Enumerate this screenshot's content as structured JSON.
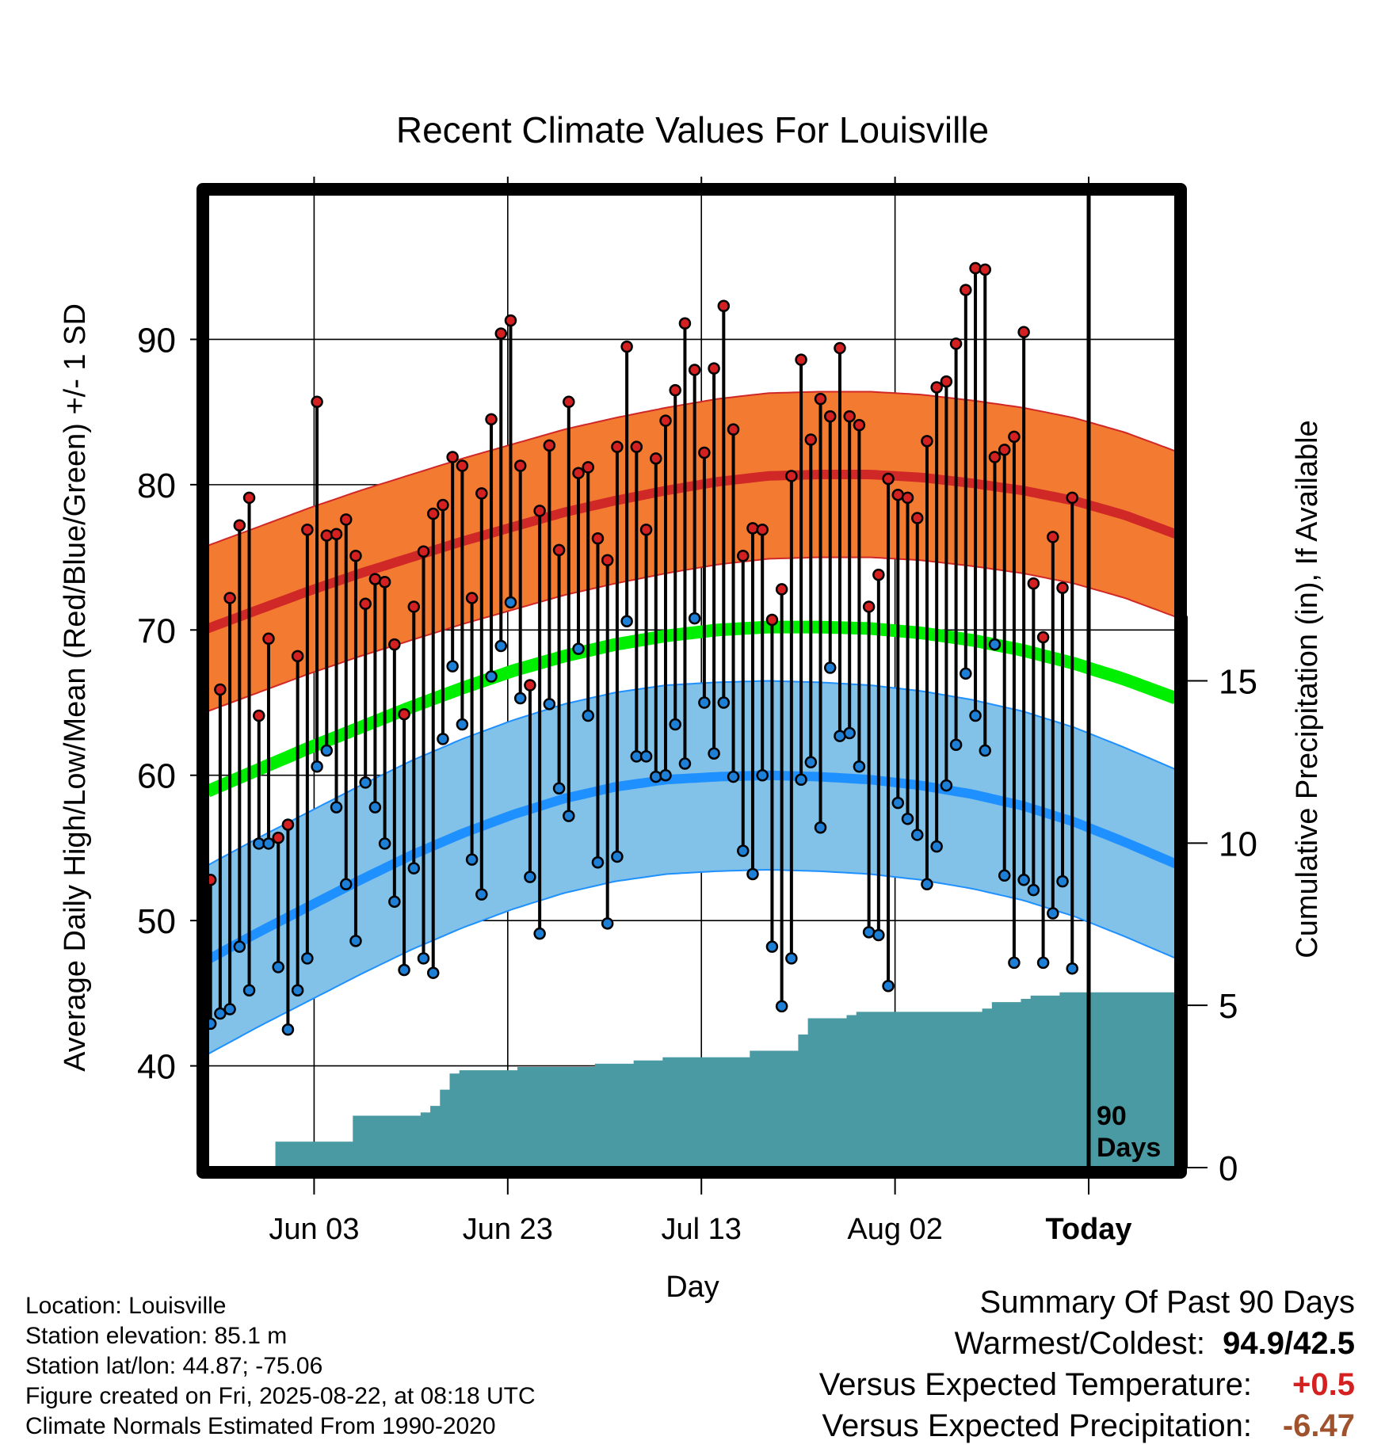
{
  "chart_data": {
    "type": "line",
    "title": "Recent Climate Values For Louisville",
    "xlabel": "Day",
    "ylabel_left": "Average Daily High/Low/Mean (Red/Blue/Green) +/- 1 SD",
    "ylabel_right": "Cumulative Precipitation (in), If Available",
    "x_ticks": [
      "Jun 03",
      "Jun 23",
      "Jul 13",
      "Aug 02",
      "Today"
    ],
    "x_tick_days": [
      12,
      32,
      52,
      72,
      92
    ],
    "x_range_days": [
      1,
      101
    ],
    "ylim_left": [
      33,
      100
    ],
    "yticks_left": [
      40,
      50,
      60,
      70,
      80,
      90
    ],
    "ylim_right": [
      0,
      30
    ],
    "yticks_right": [
      0,
      5,
      10,
      15
    ],
    "period_label": "90 Days",
    "normal_high": [
      70.1,
      71.4,
      72.7,
      73.9,
      75.0,
      76.1,
      77.1,
      78.1,
      78.9,
      79.6,
      80.2,
      80.6,
      80.7,
      80.7,
      80.5,
      80.1,
      79.6,
      78.9,
      77.9,
      76.6
    ],
    "normal_high_sd": 5.7,
    "normal_low": [
      47.3,
      49.2,
      51.0,
      52.8,
      54.5,
      56.0,
      57.3,
      58.4,
      59.2,
      59.7,
      59.9,
      60.0,
      59.9,
      59.7,
      59.3,
      58.7,
      57.9,
      56.8,
      55.4,
      53.9
    ],
    "normal_low_sd": 6.5,
    "normal_mean": [
      58.9,
      60.4,
      61.9,
      63.3,
      64.7,
      66.0,
      67.2,
      68.2,
      69.0,
      69.6,
      70.0,
      70.2,
      70.2,
      70.1,
      69.8,
      69.3,
      68.6,
      67.7,
      66.6,
      65.3
    ],
    "series": [
      {
        "name": "High",
        "values": [
          52.8,
          65.9,
          72.2,
          77.2,
          79.1,
          64.1,
          69.4,
          55.7,
          56.6,
          68.2,
          76.9,
          85.7,
          76.5,
          76.6,
          77.6,
          75.1,
          71.8,
          73.5,
          73.3,
          69.0,
          64.2,
          71.6,
          75.4,
          78.0,
          78.6,
          81.9,
          81.3,
          72.2,
          79.4,
          84.5,
          90.4,
          91.3,
          81.3,
          66.2,
          78.2,
          82.7,
          75.5,
          85.7,
          80.8,
          81.2,
          76.3,
          74.8,
          82.6,
          89.5,
          82.6,
          76.9,
          81.8,
          84.4,
          86.5,
          91.1,
          87.9,
          82.2,
          88.0,
          92.3,
          83.8,
          75.1,
          77.0,
          76.9,
          70.7,
          72.8,
          80.6,
          88.6,
          83.1,
          85.9,
          84.7,
          89.4,
          84.7,
          84.1,
          71.6,
          73.8,
          80.4,
          79.3,
          79.1,
          77.7,
          83.0,
          86.7,
          87.1,
          89.7,
          93.4,
          94.9,
          94.8,
          81.9,
          82.4,
          83.3,
          90.5,
          73.2,
          69.5,
          76.4,
          72.9,
          79.1
        ]
      },
      {
        "name": "Low",
        "values": [
          42.9,
          43.6,
          43.9,
          48.2,
          45.2,
          55.3,
          55.3,
          46.8,
          42.5,
          45.2,
          47.4,
          60.6,
          61.7,
          57.8,
          52.5,
          48.6,
          59.5,
          57.8,
          55.3,
          51.3,
          46.6,
          53.6,
          47.4,
          46.4,
          62.5,
          67.5,
          63.5,
          54.2,
          51.8,
          66.8,
          68.9,
          71.9,
          65.3,
          53.0,
          49.1,
          64.9,
          59.1,
          57.2,
          68.7,
          64.1,
          54.0,
          49.8,
          54.4,
          70.6,
          61.3,
          61.3,
          59.9,
          60.0,
          63.5,
          60.8,
          70.8,
          65.0,
          61.5,
          65.0,
          59.9,
          54.8,
          53.2,
          60.0,
          48.2,
          44.1,
          47.4,
          59.7,
          60.9,
          56.4,
          67.4,
          62.7,
          62.9,
          60.6,
          49.2,
          49.0,
          45.5,
          58.1,
          57.0,
          55.9,
          52.5,
          55.1,
          59.3,
          62.1,
          67.0,
          64.1,
          61.7,
          69.0,
          53.1,
          47.1,
          52.8,
          52.1,
          47.1,
          50.5,
          52.7,
          46.7
        ]
      }
    ],
    "precip_days": [
      1,
      7,
      8,
      15,
      16,
      22,
      23,
      24,
      25,
      26,
      27,
      28,
      33,
      34,
      41,
      42,
      45,
      46,
      48,
      55,
      57,
      62,
      63,
      67,
      68,
      69,
      81,
      82,
      85,
      86,
      89,
      100
    ],
    "precip_cumulative": [
      0,
      0,
      0.8,
      0.8,
      1.6,
      1.6,
      1.7,
      1.9,
      2.4,
      2.9,
      3.0,
      3.0,
      3.1,
      3.1,
      3.2,
      3.2,
      3.3,
      3.3,
      3.4,
      3.4,
      3.6,
      4.1,
      4.6,
      4.7,
      4.8,
      4.8,
      4.9,
      5.1,
      5.2,
      5.3,
      5.4,
      5.4
    ]
  },
  "info": {
    "location": "Location: Louisville",
    "elevation": "Station elevation: 85.1 m",
    "latlon": "Station lat/lon: 44.87; -75.06",
    "created": "Figure created on Fri, 2025-08-22, at 08:18 UTC",
    "normals": "Climate Normals Estimated From 1990-2020"
  },
  "summary": {
    "title": "Summary Of Past 90 Days",
    "warm_cold_label": "Warmest/Coldest:",
    "warm_cold_value": "94.9/42.5",
    "temp_label": "Versus Expected Temperature:",
    "temp_value": "+0.5",
    "precip_label": "Versus Expected Precipitation:",
    "precip_value": "-6.47"
  },
  "colors": {
    "high_band": "#f37a31",
    "high_line": "#d02727",
    "low_band": "#82c1e8",
    "low_line": "#1e90ff",
    "mean_line": "#00ee00",
    "precip": "#4a9aa4",
    "high_point": "#d42020",
    "low_point": "#1e7fd6",
    "temp_value": "#d42020",
    "precip_value": "#a0522d"
  }
}
